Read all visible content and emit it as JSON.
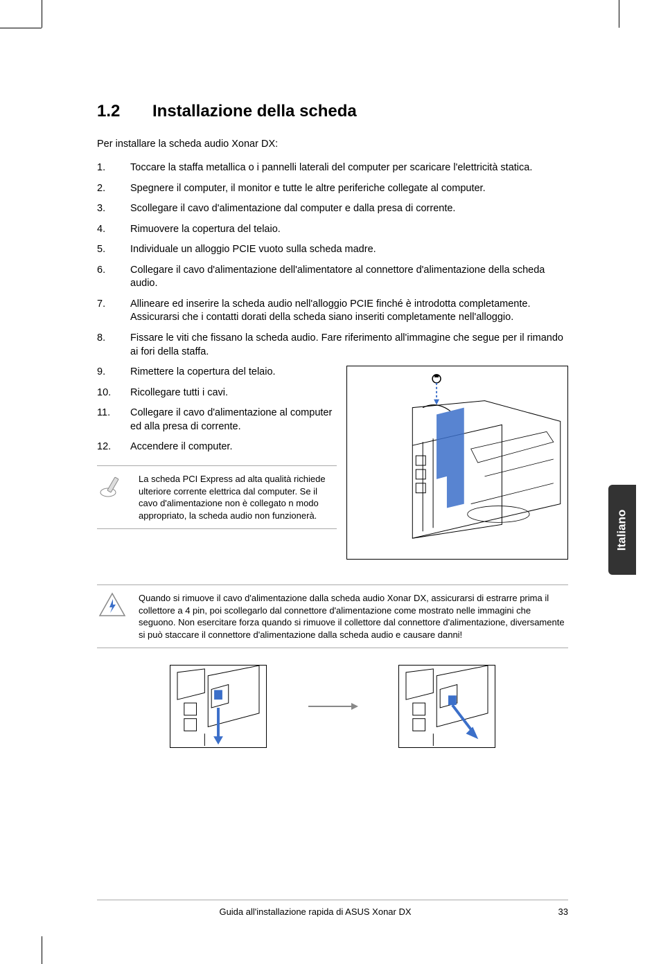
{
  "heading": {
    "number": "1.2",
    "title": "Installazione della scheda",
    "fontsize": 24
  },
  "intro": "Per installare la scheda audio Xonar DX:",
  "body_fontsize": 14.5,
  "line_height": 1.35,
  "steps": [
    "Toccare la staffa metallica o i pannelli laterali del computer per scaricare l'elettricità statica.",
    "Spegnere il computer, il monitor e tutte le altre periferiche collegate al computer.",
    "Scollegare il cavo d'alimentazione dal computer e dalla presa di corrente.",
    "Rimuovere la copertura del telaio.",
    "Individuale un alloggio PCIE vuoto sulla scheda madre.",
    "Collegare il cavo d'alimentazione dell'alimentatore al connettore d'alimentazione della scheda audio.",
    "Allineare ed inserire la scheda audio nell'alloggio PCIE finché è introdotta completamente. Assicurarsi che i contatti dorati della scheda siano inseriti completamente nell'alloggio.",
    "Fissare le viti che fissano la scheda audio. Fare riferimento all'immagine che segue per il rimando ai fori della staffa."
  ],
  "steps_right": [
    "Rimettere la copertura del telaio.",
    "Ricollegare tutti i cavi.",
    "Collegare il cavo d'alimentazione al computer ed alla presa di corrente.",
    "Accendere il computer."
  ],
  "note": "La scheda PCI Express ad alta qualità richiede ulteriore corrente elettrica dal computer. Se il cavo d'alimentazione non è collegato n modo appropriato, la scheda audio non funzionerà.",
  "note_fontsize": 13,
  "warning": "Quando si rimuove il cavo d'alimentazione dalla scheda audio Xonar DX, assicurarsi di estrarre prima il collettore a 4 pin, poi scollegarlo dal connettore d'alimentazione come mostrato nelle immagini che seguono. Non esercitare forza quando si rimuove il collettore dal connettore d'alimentazione, diversamente si può staccare il connettore d'alimentazione dalla scheda audio e causare danni!",
  "warning_fontsize": 13,
  "side_tab": {
    "label": "Italiano",
    "bg": "#333333",
    "color": "#ffffff",
    "fontsize": 17
  },
  "footer": {
    "title": "Guida all'installazione rapida di ASUS Xonar DX",
    "page": "33",
    "fontsize": 13
  },
  "colors": {
    "text": "#000000",
    "rule": "#aaaaaa",
    "arrow": "#888888",
    "accent_blue": "#3b6fc9",
    "background": "#ffffff"
  }
}
